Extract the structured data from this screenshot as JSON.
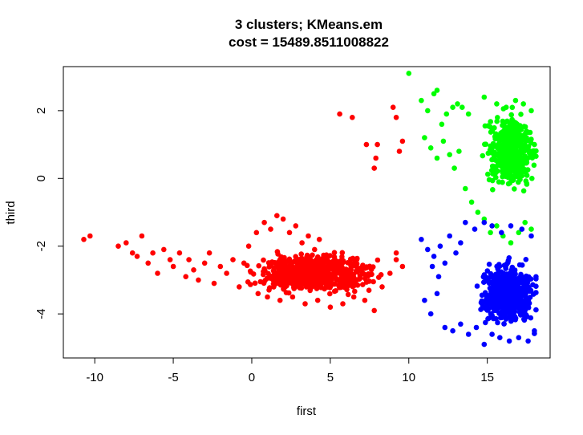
{
  "chart_data": {
    "type": "scatter",
    "title": "3 clusters; KMeans.em",
    "subtitle": "cost = 15489.8511008822",
    "xlabel": "first",
    "ylabel": "third",
    "xlim": [
      -12.0,
      19.0
    ],
    "ylim": [
      -5.3,
      3.3
    ],
    "x_ticks": [
      -10,
      -5,
      0,
      5,
      10,
      15
    ],
    "y_ticks": [
      -4,
      -2,
      0,
      2
    ],
    "grid": false,
    "legend": "none",
    "series": [
      {
        "color": "#ff0000",
        "points": [
          [
            -10.7,
            -1.8
          ],
          [
            -10.3,
            -1.7
          ],
          [
            -8.5,
            -2.0
          ],
          [
            -8.0,
            -1.9
          ],
          [
            -7.6,
            -2.2
          ],
          [
            -7.3,
            -2.3
          ],
          [
            -7.0,
            -1.7
          ],
          [
            -6.6,
            -2.5
          ],
          [
            -6.3,
            -2.2
          ],
          [
            -6.0,
            -2.8
          ],
          [
            -5.6,
            -2.1
          ],
          [
            -5.2,
            -2.4
          ],
          [
            -5.0,
            -2.6
          ],
          [
            -4.6,
            -2.2
          ],
          [
            -4.2,
            -2.9
          ],
          [
            -4.0,
            -2.4
          ],
          [
            -3.7,
            -2.7
          ],
          [
            -3.4,
            -3.0
          ],
          [
            -3.0,
            -2.5
          ],
          [
            -2.7,
            -2.2
          ],
          [
            -2.4,
            -3.1
          ],
          [
            -2.0,
            -2.6
          ],
          [
            -1.6,
            -2.8
          ],
          [
            -1.2,
            -2.4
          ],
          [
            -0.8,
            -3.2
          ],
          [
            -0.5,
            -2.5
          ],
          [
            -0.2,
            -2.0
          ],
          [
            0.3,
            -1.6
          ],
          [
            0.8,
            -1.3
          ],
          [
            1.2,
            -1.5
          ],
          [
            1.6,
            -1.1
          ],
          [
            2.0,
            -1.2
          ],
          [
            2.4,
            -1.6
          ],
          [
            2.8,
            -1.4
          ],
          [
            3.2,
            -1.9
          ],
          [
            3.6,
            -1.7
          ],
          [
            4.0,
            -2.1
          ],
          [
            4.3,
            -1.8
          ],
          [
            0.4,
            -3.4
          ],
          [
            1.0,
            -3.5
          ],
          [
            1.8,
            -3.6
          ],
          [
            2.6,
            -3.5
          ],
          [
            3.4,
            -3.7
          ],
          [
            4.2,
            -3.6
          ],
          [
            5.0,
            -3.8
          ],
          [
            5.8,
            -3.7
          ],
          [
            6.5,
            -3.5
          ],
          [
            7.2,
            -3.6
          ],
          [
            7.8,
            -3.9
          ],
          [
            8.3,
            -3.2
          ],
          [
            8.8,
            -2.8
          ],
          [
            9.2,
            -2.4
          ],
          [
            9.6,
            -2.6
          ],
          [
            9.2,
            -2.2
          ],
          [
            5.6,
            1.9
          ],
          [
            6.4,
            1.8
          ],
          [
            7.3,
            1.0
          ],
          [
            7.8,
            0.3
          ],
          [
            8.0,
            1.0
          ],
          [
            7.9,
            0.6
          ],
          [
            9.0,
            2.1
          ],
          [
            9.2,
            1.8
          ],
          [
            9.4,
            0.8
          ],
          [
            9.6,
            1.1
          ]
        ],
        "cloud": {
          "x": [
            -3.0,
            9.5
          ],
          "y": [
            -3.7,
            -1.8
          ],
          "n": 700,
          "center": [
            4.0,
            -2.8
          ]
        }
      },
      {
        "color": "#00ff00",
        "points": [
          [
            10.0,
            3.1
          ],
          [
            10.8,
            2.3
          ],
          [
            11.2,
            2.0
          ],
          [
            11.6,
            2.5
          ],
          [
            11.8,
            2.6
          ],
          [
            12.1,
            1.6
          ],
          [
            12.4,
            1.9
          ],
          [
            12.8,
            2.1
          ],
          [
            13.1,
            2.2
          ],
          [
            13.4,
            2.1
          ],
          [
            13.8,
            1.9
          ],
          [
            11.0,
            1.2
          ],
          [
            11.4,
            0.9
          ],
          [
            11.8,
            0.6
          ],
          [
            12.2,
            1.1
          ],
          [
            12.6,
            0.7
          ],
          [
            12.9,
            0.3
          ],
          [
            13.2,
            0.8
          ],
          [
            13.6,
            -0.3
          ],
          [
            14.0,
            -0.7
          ],
          [
            14.4,
            -1.0
          ],
          [
            14.8,
            -1.2
          ],
          [
            15.2,
            -1.6
          ],
          [
            15.6,
            -1.4
          ],
          [
            16.0,
            -1.7
          ],
          [
            16.5,
            -1.9
          ],
          [
            17.0,
            -1.6
          ],
          [
            17.4,
            -1.3
          ],
          [
            17.8,
            -1.5
          ],
          [
            14.8,
            2.4
          ],
          [
            15.6,
            2.2
          ],
          [
            16.2,
            2.1
          ],
          [
            16.8,
            2.3
          ],
          [
            17.3,
            2.2
          ],
          [
            17.8,
            2.0
          ],
          [
            18.0,
            1.0
          ]
        ],
        "cloud": {
          "x": [
            13.0,
            18.1
          ],
          "y": [
            -1.2,
            2.2
          ],
          "n": 550,
          "center": [
            16.5,
            0.8
          ]
        }
      },
      {
        "color": "#0000ff",
        "points": [
          [
            10.8,
            -1.8
          ],
          [
            11.2,
            -2.1
          ],
          [
            11.6,
            -2.3
          ],
          [
            12.0,
            -2.0
          ],
          [
            11.5,
            -2.6
          ],
          [
            11.9,
            -2.9
          ],
          [
            12.3,
            -2.5
          ],
          [
            12.6,
            -1.7
          ],
          [
            13.0,
            -2.2
          ],
          [
            13.3,
            -1.9
          ],
          [
            13.6,
            -1.3
          ],
          [
            14.2,
            -1.5
          ],
          [
            14.8,
            -1.3
          ],
          [
            15.3,
            -1.4
          ],
          [
            15.9,
            -1.6
          ],
          [
            16.5,
            -1.4
          ],
          [
            17.2,
            -1.5
          ],
          [
            17.8,
            -1.7
          ],
          [
            11.0,
            -3.6
          ],
          [
            11.4,
            -4.0
          ],
          [
            11.8,
            -3.4
          ],
          [
            12.3,
            -4.4
          ],
          [
            12.8,
            -4.5
          ],
          [
            13.3,
            -4.3
          ],
          [
            13.8,
            -4.6
          ],
          [
            14.3,
            -4.4
          ],
          [
            14.8,
            -4.9
          ],
          [
            15.3,
            -4.6
          ],
          [
            15.8,
            -4.7
          ],
          [
            16.4,
            -4.8
          ],
          [
            17.0,
            -4.7
          ],
          [
            17.6,
            -4.8
          ],
          [
            18.0,
            -4.5
          ]
        ],
        "cloud": {
          "x": [
            12.5,
            18.1
          ],
          "y": [
            -4.7,
            -1.7
          ],
          "n": 550,
          "center": [
            16.3,
            -3.4
          ]
        }
      }
    ]
  }
}
